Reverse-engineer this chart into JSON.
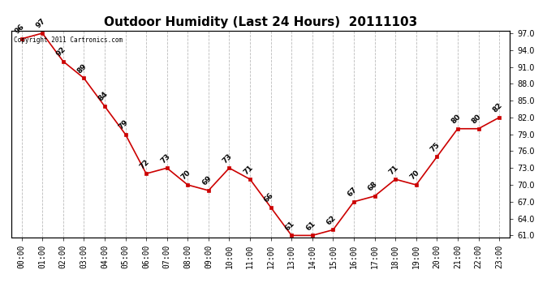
{
  "title": "Outdoor Humidity (Last 24 Hours)  20111103",
  "copyright_text": "Copyright 2011 Cartronics.com",
  "hours": [
    "00:00",
    "01:00",
    "02:00",
    "03:00",
    "04:00",
    "05:00",
    "06:00",
    "07:00",
    "08:00",
    "09:00",
    "10:00",
    "11:00",
    "12:00",
    "13:00",
    "14:00",
    "15:00",
    "16:00",
    "17:00",
    "18:00",
    "19:00",
    "20:00",
    "21:00",
    "22:00",
    "23:00"
  ],
  "values": [
    96,
    97,
    92,
    89,
    84,
    79,
    72,
    73,
    70,
    69,
    73,
    71,
    66,
    61,
    61,
    62,
    67,
    68,
    71,
    70,
    75,
    80,
    80,
    82
  ],
  "line_color": "#cc0000",
  "marker_color": "#cc0000",
  "background_color": "#ffffff",
  "grid_color": "#bbbbbb",
  "ylim_min": 61.0,
  "ylim_max": 97.0,
  "ytick_step": 3.0,
  "title_fontsize": 11,
  "label_fontsize": 7,
  "annotation_fontsize": 6.5,
  "figwidth": 6.9,
  "figheight": 3.75,
  "dpi": 100
}
